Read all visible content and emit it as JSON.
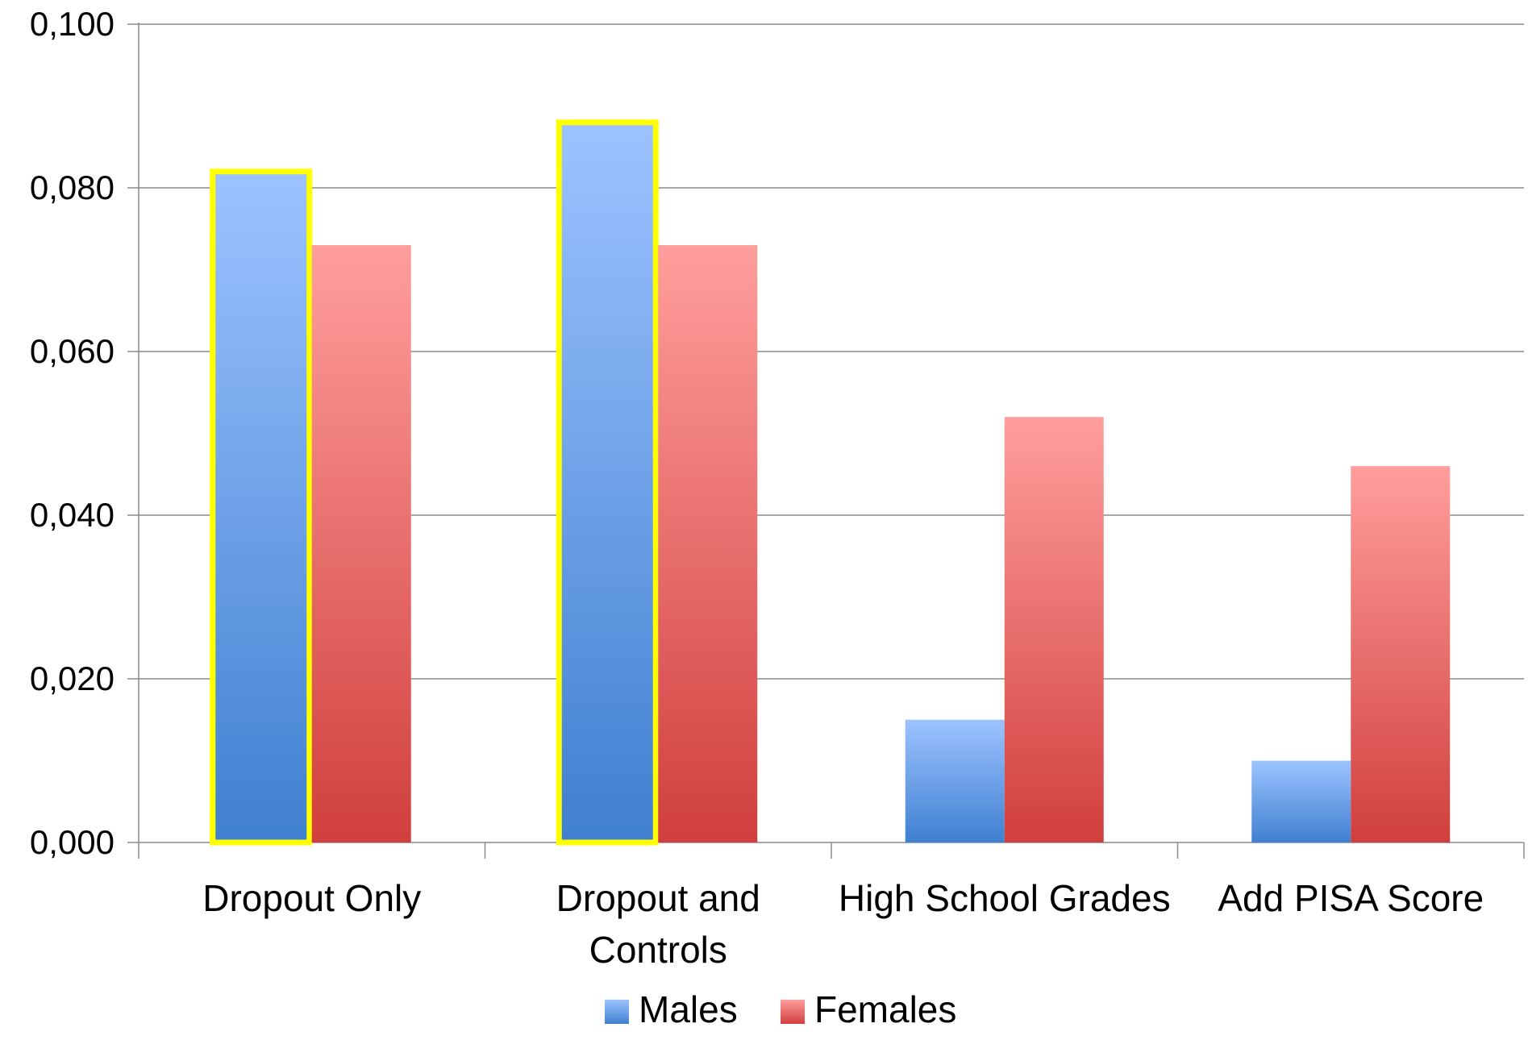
{
  "chart_data": {
    "type": "bar",
    "categories": [
      "Dropout Only",
      "Dropout and Controls",
      "High School Grades",
      "Add PISA Score"
    ],
    "category_lines": [
      [
        "Dropout Only"
      ],
      [
        "Dropout and",
        "Controls"
      ],
      [
        "High School Grades"
      ],
      [
        "Add PISA Score"
      ]
    ],
    "series": [
      {
        "name": "Males",
        "values": [
          0.082,
          0.088,
          0.015,
          0.01
        ],
        "highlighted": [
          true,
          true,
          false,
          false
        ],
        "color_top": "#9dc3ff",
        "color_bottom": "#3f80d0"
      },
      {
        "name": "Females",
        "values": [
          0.073,
          0.073,
          0.052,
          0.046
        ],
        "highlighted": [
          false,
          false,
          false,
          false
        ],
        "color_top": "#ff9e9c",
        "color_bottom": "#d03f3d"
      }
    ],
    "highlight_color": "#ffff00",
    "ylim": [
      0,
      0.1
    ],
    "yticks": [
      0.0,
      0.02,
      0.04,
      0.06,
      0.08,
      0.1
    ],
    "ytick_labels": [
      "0,000",
      "0,020",
      "0,040",
      "0,060",
      "0,080",
      "0,100"
    ],
    "gridlines": true,
    "legend_position": "bottom",
    "title": "",
    "xlabel": "",
    "ylabel": ""
  }
}
